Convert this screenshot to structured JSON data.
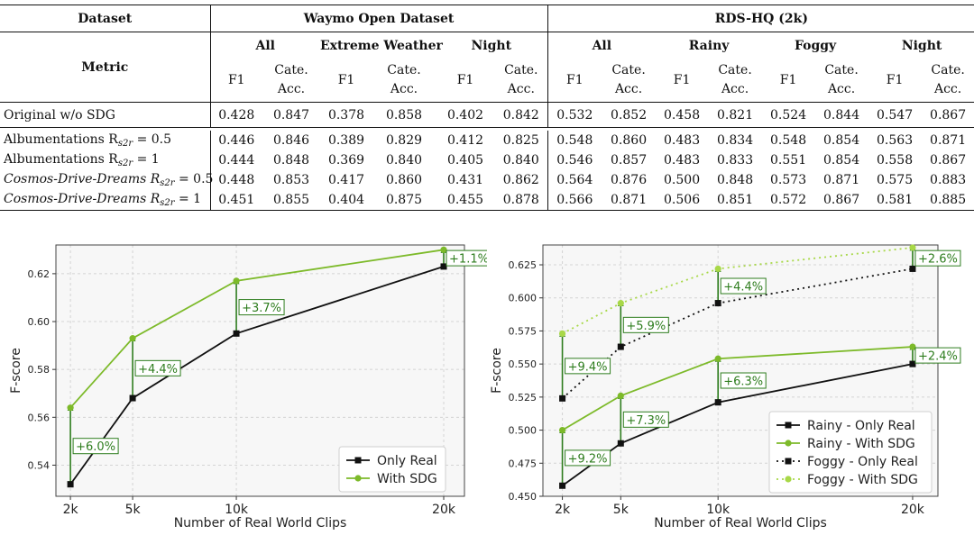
{
  "table": {
    "header": {
      "dataset_label": "Dataset",
      "metric_label": "Metric",
      "group_waymo": "Waymo Open Dataset",
      "group_rds": "RDS-HQ (2k)",
      "sub_groups": [
        "All",
        "Extreme Weather",
        "Night",
        "All",
        "Rainy",
        "Foggy",
        "Night"
      ],
      "f1": "F1",
      "cate_line1": "Cate.",
      "cate_line2": "Acc."
    },
    "rows": [
      {
        "label": "Original w/o SDG",
        "sub": "",
        "eq": "",
        "values": [
          "0.428",
          "0.847",
          "0.378",
          "0.858",
          "0.402",
          "0.842",
          "0.532",
          "0.852",
          "0.458",
          "0.821",
          "0.524",
          "0.844",
          "0.547",
          "0.867"
        ],
        "bold": []
      },
      {
        "label": "Albumentations R",
        "sub": "s2r",
        "eq": " = 0.5",
        "values": [
          "0.446",
          "0.846",
          "0.389",
          "0.829",
          "0.412",
          "0.825",
          "0.548",
          "0.860",
          "0.483",
          "0.834",
          "0.548",
          "0.854",
          "0.563",
          "0.871"
        ],
        "bold": []
      },
      {
        "label": "Albumentations R",
        "sub": "s2r",
        "eq": " = 1",
        "values": [
          "0.444",
          "0.848",
          "0.369",
          "0.840",
          "0.405",
          "0.840",
          "0.546",
          "0.857",
          "0.483",
          "0.833",
          "0.551",
          "0.854",
          "0.558",
          "0.867"
        ],
        "bold": []
      },
      {
        "label": "Cosmos-Drive-Dreams R",
        "sub": "s2r",
        "eq": " = 0.5",
        "values": [
          "0.448",
          "0.853",
          "0.417",
          "0.860",
          "0.431",
          "0.862",
          "0.564",
          "0.876",
          "0.500",
          "0.848",
          "0.573",
          "0.871",
          "0.575",
          "0.883"
        ],
        "bold": [
          2,
          7,
          10,
          11
        ]
      },
      {
        "label": "Cosmos-Drive-Dreams R",
        "sub": "s2r",
        "eq": " = 1",
        "values": [
          "0.451",
          "0.855",
          "0.404",
          "0.875",
          "0.455",
          "0.878",
          "0.566",
          "0.871",
          "0.506",
          "0.851",
          "0.572",
          "0.867",
          "0.581",
          "0.885"
        ],
        "bold": [
          0,
          1,
          3,
          4,
          5,
          6,
          8,
          9,
          12,
          13
        ]
      }
    ]
  },
  "chart_data": [
    {
      "type": "line",
      "title": "",
      "xlabel": "Number of Real World Clips",
      "ylabel": "F-score",
      "x": [
        2,
        5,
        10,
        20
      ],
      "x_tick_labels": [
        "2k",
        "5k",
        "10k",
        "20k"
      ],
      "xlim": [
        1.3,
        21.0
      ],
      "ylim": [
        0.527,
        0.632
      ],
      "y_ticks": [
        "0.54",
        "0.56",
        "0.58",
        "0.60",
        "0.62"
      ],
      "y_tick_values": [
        0.54,
        0.56,
        0.58,
        0.6,
        0.62
      ],
      "series": [
        {
          "name": "Only Real",
          "values": [
            0.532,
            0.568,
            0.595,
            0.623
          ],
          "color": "#111111",
          "marker": "square",
          "dash": false
        },
        {
          "name": "With SDG",
          "values": [
            0.564,
            0.593,
            0.617,
            0.63
          ],
          "color": "#7dba2a",
          "marker": "circle",
          "dash": false
        }
      ],
      "annotations": [
        {
          "text": "+6.0%",
          "x": 2,
          "from": 0.532,
          "to": 0.564
        },
        {
          "text": "+4.4%",
          "x": 5,
          "from": 0.568,
          "to": 0.593
        },
        {
          "text": "+3.7%",
          "x": 10,
          "from": 0.595,
          "to": 0.617
        },
        {
          "text": "+1.1%",
          "x": 20,
          "from": 0.623,
          "to": 0.63
        }
      ],
      "legend_position": "bottom-right",
      "grid": true
    },
    {
      "type": "line",
      "title": "",
      "xlabel": "Number of Real World Clips",
      "ylabel": "F-score",
      "x": [
        2,
        5,
        10,
        20
      ],
      "x_tick_labels": [
        "2k",
        "5k",
        "10k",
        "20k"
      ],
      "xlim": [
        1.0,
        21.3
      ],
      "ylim": [
        0.45,
        0.64
      ],
      "y_ticks": [
        "0.450",
        "0.475",
        "0.500",
        "0.525",
        "0.550",
        "0.575",
        "0.600",
        "0.625"
      ],
      "y_tick_values": [
        0.45,
        0.475,
        0.5,
        0.525,
        0.55,
        0.575,
        0.6,
        0.625
      ],
      "series": [
        {
          "name": "Rainy - Only Real",
          "values": [
            0.458,
            0.49,
            0.521,
            0.55
          ],
          "color": "#111111",
          "marker": "square",
          "dash": false
        },
        {
          "name": "Rainy - With SDG",
          "values": [
            0.5,
            0.526,
            0.554,
            0.563
          ],
          "color": "#7dba2a",
          "marker": "circle",
          "dash": false
        },
        {
          "name": "Foggy - Only Real",
          "values": [
            0.524,
            0.563,
            0.596,
            0.622
          ],
          "color": "#111111",
          "marker": "square",
          "dash": true
        },
        {
          "name": "Foggy - With SDG",
          "values": [
            0.573,
            0.596,
            0.622,
            0.638
          ],
          "color": "#a8d848",
          "marker": "circle",
          "dash": true
        }
      ],
      "annotations": [
        {
          "text": "+9.4%",
          "x": 2,
          "from": 0.524,
          "to": 0.573
        },
        {
          "text": "+5.9%",
          "x": 5,
          "from": 0.563,
          "to": 0.596
        },
        {
          "text": "+4.4%",
          "x": 10,
          "from": 0.596,
          "to": 0.622
        },
        {
          "text": "+2.6%",
          "x": 20,
          "from": 0.622,
          "to": 0.638
        },
        {
          "text": "+9.2%",
          "x": 2,
          "from": 0.458,
          "to": 0.5
        },
        {
          "text": "+7.3%",
          "x": 5,
          "from": 0.49,
          "to": 0.526
        },
        {
          "text": "+6.3%",
          "x": 10,
          "from": 0.521,
          "to": 0.554
        },
        {
          "text": "+2.4%",
          "x": 20,
          "from": 0.55,
          "to": 0.563
        }
      ],
      "legend_position": "bottom-right",
      "grid": true
    }
  ]
}
